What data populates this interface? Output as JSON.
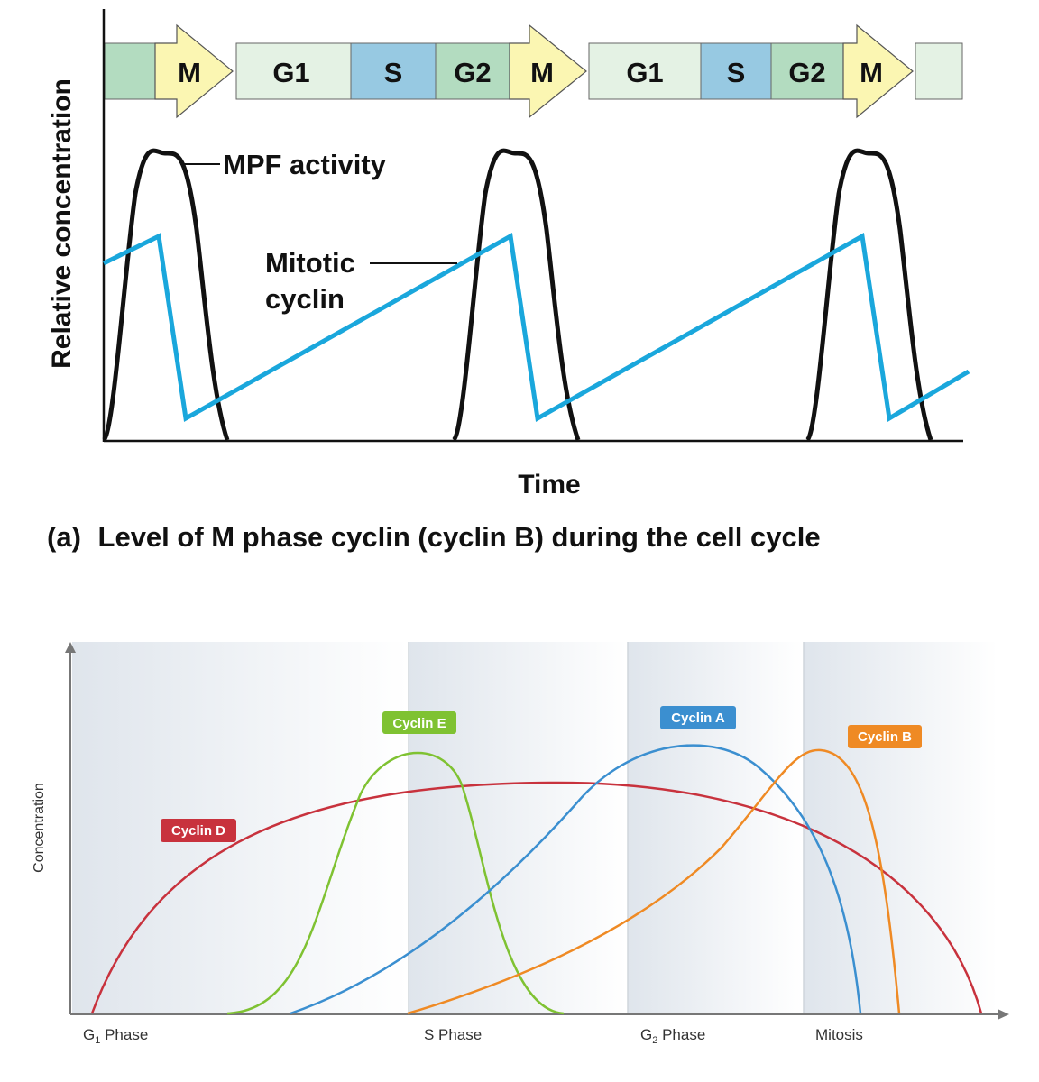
{
  "charts": {
    "top": {
      "phase_bar": [
        {
          "label": "",
          "kind": "G2"
        },
        {
          "label": "M",
          "kind": "M"
        },
        {
          "label": "G1",
          "kind": "G1"
        },
        {
          "label": "S",
          "kind": "S"
        },
        {
          "label": "G2",
          "kind": "G2"
        },
        {
          "label": "M",
          "kind": "M"
        },
        {
          "label": "G1",
          "kind": "G1"
        },
        {
          "label": "S",
          "kind": "S"
        },
        {
          "label": "G2",
          "kind": "G2"
        },
        {
          "label": "M",
          "kind": "M"
        },
        {
          "label": "",
          "kind": "G1"
        }
      ],
      "phase_colors": {
        "M": "#fbf6b2",
        "G1": "#e4f2e4",
        "S": "#97c9e2",
        "G2": "#b3dcc0"
      },
      "mpf_label": "MPF activity",
      "cyclin_label_line1": "Mitotic",
      "cyclin_label_line2": "cyclin",
      "ylabel": "Relative concentration",
      "xlabel": "Time",
      "caption_prefix": "(a)",
      "caption_text": "Level of M phase cyclin (cyclin B) during the cell cycle",
      "mpf_color": "#111111",
      "cyclin_color": "#1aa7dc"
    },
    "bottom": {
      "ylabel": "Concentration",
      "ticks": [
        {
          "main": "G",
          "sub": "1",
          "rest": " Phase"
        },
        {
          "main": "S Phase",
          "sub": "",
          "rest": ""
        },
        {
          "main": "G",
          "sub": "2",
          "rest": " Phase"
        },
        {
          "main": "Mitosis",
          "sub": "",
          "rest": ""
        }
      ],
      "tags": {
        "d": "Cyclin D",
        "e": "Cyclin E",
        "a": "Cyclin A",
        "b": "Cyclin B"
      },
      "colors": {
        "d": "#c8323d",
        "e": "#7fc232",
        "a": "#3b8fd0",
        "b": "#ef8a24"
      }
    }
  },
  "chart_data": [
    {
      "type": "line",
      "title": "Level of M phase cyclin (cyclin B) during the cell cycle",
      "xlabel": "Time",
      "ylabel": "Relative concentration",
      "x": [
        0,
        1,
        2,
        3,
        4,
        5,
        6,
        7,
        8,
        9,
        10,
        11,
        12,
        13,
        14,
        15,
        16,
        17,
        18,
        19,
        20,
        21,
        22,
        23,
        24,
        25
      ],
      "series": [
        {
          "name": "MPF activity",
          "x": [
            0,
            0.5,
            1,
            1.5,
            2,
            2.5,
            3,
            3.5,
            4,
            9,
            9.5,
            10,
            10.5,
            11,
            11.5,
            12,
            12.5,
            13,
            18,
            18.5,
            19,
            19.5,
            20,
            20.5,
            21,
            21.5,
            22
          ],
          "values": [
            0,
            45,
            85,
            100,
            85,
            45,
            15,
            3,
            0,
            0,
            40,
            85,
            100,
            85,
            45,
            15,
            3,
            0,
            0,
            40,
            85,
            100,
            85,
            45,
            15,
            3,
            0
          ]
        },
        {
          "name": "Mitotic cyclin",
          "x": [
            0,
            1.5,
            2.3,
            10.5,
            11.3,
            19.5,
            20.3,
            22.5
          ],
          "values": [
            62,
            72,
            8,
            72,
            8,
            72,
            8,
            24
          ]
        }
      ]
    },
    {
      "type": "line",
      "xlabel": "",
      "ylabel": "Concentration",
      "categories": [
        "G1 Phase",
        "S Phase",
        "G2 Phase",
        "Mitosis"
      ],
      "x_range": [
        0,
        100
      ],
      "series": [
        {
          "name": "Cyclin D",
          "x": [
            2,
            10,
            20,
            30,
            40,
            50,
            55,
            60,
            70,
            80,
            90,
            95,
            100
          ],
          "values": [
            0,
            35,
            62,
            79,
            88,
            92,
            91,
            88,
            80,
            62,
            37,
            20,
            0
          ]
        },
        {
          "name": "Cyclin E",
          "x": [
            17,
            25,
            30,
            35,
            37,
            40,
            42,
            45,
            48,
            55
          ],
          "values": [
            0,
            25,
            70,
            94,
            97,
            96,
            90,
            65,
            25,
            0
          ]
        },
        {
          "name": "Cyclin A",
          "x": [
            24,
            35,
            45,
            55,
            60,
            65,
            70,
            78,
            83,
            87
          ],
          "values": [
            0,
            23,
            50,
            82,
            94,
            98,
            94,
            72,
            40,
            0
          ]
        },
        {
          "name": "Cyclin B",
          "x": [
            37,
            50,
            60,
            70,
            75,
            80,
            83,
            88,
            91,
            92
          ],
          "values": [
            0,
            16,
            33,
            62,
            82,
            96,
            98,
            80,
            35,
            0
          ]
        }
      ]
    }
  ]
}
